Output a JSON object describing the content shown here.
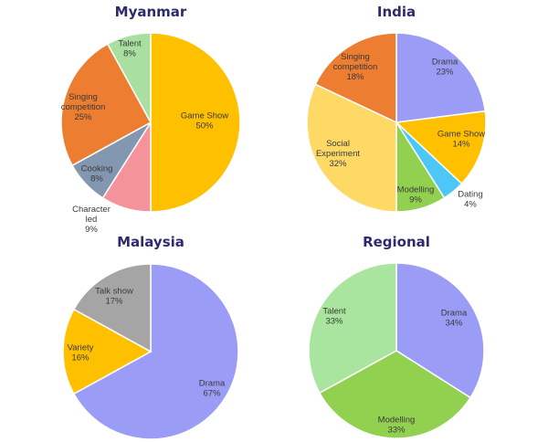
{
  "chart_data": [
    {
      "type": "pie",
      "title": "Myanmar",
      "slices": [
        {
          "label": [
            "Game Show"
          ],
          "value": 50,
          "pct": "50%",
          "color": "#ffc000"
        },
        {
          "label": [
            "Character",
            "led"
          ],
          "value": 9,
          "pct": "9%",
          "color": "#f4939a"
        },
        {
          "label": [
            "Cooking"
          ],
          "value": 8,
          "pct": "8%",
          "color": "#8497b0"
        },
        {
          "label": [
            "Singing",
            "competition"
          ],
          "value": 25,
          "pct": "25%",
          "color": "#ed7d31"
        },
        {
          "label": [
            "Talent"
          ],
          "value": 8,
          "pct": "8%",
          "color": "#a9dfa1"
        }
      ]
    },
    {
      "type": "pie",
      "title": "India",
      "slices": [
        {
          "label": [
            "Drama"
          ],
          "value": 23,
          "pct": "23%",
          "color": "#9b9cf5"
        },
        {
          "label": [
            "Game Show"
          ],
          "value": 14,
          "pct": "14%",
          "color": "#ffc000"
        },
        {
          "label": [
            "Dating"
          ],
          "value": 4,
          "pct": "4%",
          "color": "#4dc7f5"
        },
        {
          "label": [
            "Modelling"
          ],
          "value": 9,
          "pct": "9%",
          "color": "#92d050"
        },
        {
          "label": [
            "Social",
            "Experiment"
          ],
          "value": 32,
          "pct": "32%",
          "color": "#ffd966"
        },
        {
          "label": [
            "Singing",
            "competition"
          ],
          "value": 18,
          "pct": "18%",
          "color": "#ed7d31"
        }
      ]
    },
    {
      "type": "pie",
      "title": "Malaysia",
      "slices": [
        {
          "label": [
            "Drama"
          ],
          "value": 67,
          "pct": "67%",
          "color": "#9b9cf5"
        },
        {
          "label": [
            "Variety"
          ],
          "value": 16,
          "pct": "16%",
          "color": "#ffc000"
        },
        {
          "label": [
            "Talk show"
          ],
          "value": 17,
          "pct": "17%",
          "color": "#a5a5a5"
        }
      ]
    },
    {
      "type": "pie",
      "title": "Regional",
      "slices": [
        {
          "label": [
            "Drama"
          ],
          "value": 34,
          "pct": "34%",
          "color": "#9b9cf5"
        },
        {
          "label": [
            "Modelling"
          ],
          "value": 33,
          "pct": "33%",
          "color": "#92d050"
        },
        {
          "label": [
            "Talent"
          ],
          "value": 33,
          "pct": "33%",
          "color": "#a9e59e"
        }
      ]
    }
  ]
}
